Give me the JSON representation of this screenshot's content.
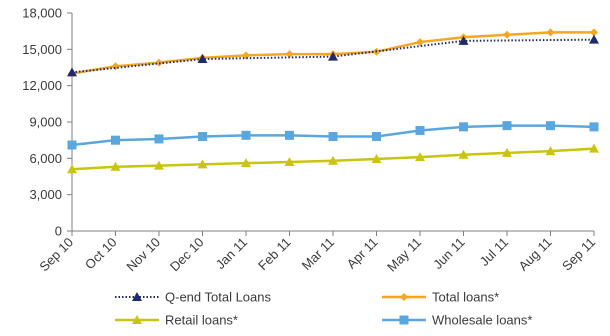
{
  "chart_data": {
    "type": "line",
    "categories": [
      "Sep 10",
      "Oct 10",
      "Nov 10",
      "Dec 10",
      "Jan 11",
      "Feb 11",
      "Mar 11",
      "Apr 11",
      "May 11",
      "Jun 11",
      "Jul 11",
      "Aug 11",
      "Sep 11"
    ],
    "ylim": [
      0,
      18000
    ],
    "yticks": [
      0,
      3000,
      6000,
      9000,
      12000,
      15000,
      18000
    ],
    "ytick_labels": [
      "0",
      "3,000",
      "6,000",
      "9,000",
      "12,000",
      "15,000",
      "18,000"
    ],
    "grid": false,
    "legend_position": "bottom",
    "series": [
      {
        "name": "Q-end Total Loans",
        "color": "#1f2a6b",
        "marker": "triangle",
        "line_style": "dotted",
        "x": [
          "Sep 10",
          "Dec 10",
          "Mar 11",
          "Jun 11",
          "Sep 11"
        ],
        "values": [
          13100,
          14200,
          14400,
          15700,
          15800
        ]
      },
      {
        "name": "Total loans*",
        "color": "#f5a623",
        "marker": "diamond",
        "line_style": "solid",
        "values": [
          13000,
          13600,
          13900,
          14300,
          14500,
          14600,
          14600,
          14800,
          15600,
          16000,
          16200,
          16400,
          16400
        ]
      },
      {
        "name": "Retail loans*",
        "color": "#c8c410",
        "marker": "triangle",
        "line_style": "solid",
        "values": [
          5100,
          5300,
          5400,
          5500,
          5600,
          5700,
          5800,
          5950,
          6100,
          6300,
          6450,
          6600,
          6800
        ]
      },
      {
        "name": "Wholesale loans*",
        "color": "#5aa6de",
        "marker": "square",
        "line_style": "solid",
        "values": [
          7100,
          7500,
          7600,
          7800,
          7900,
          7900,
          7800,
          7800,
          8300,
          8600,
          8700,
          8700,
          8600
        ]
      }
    ]
  }
}
